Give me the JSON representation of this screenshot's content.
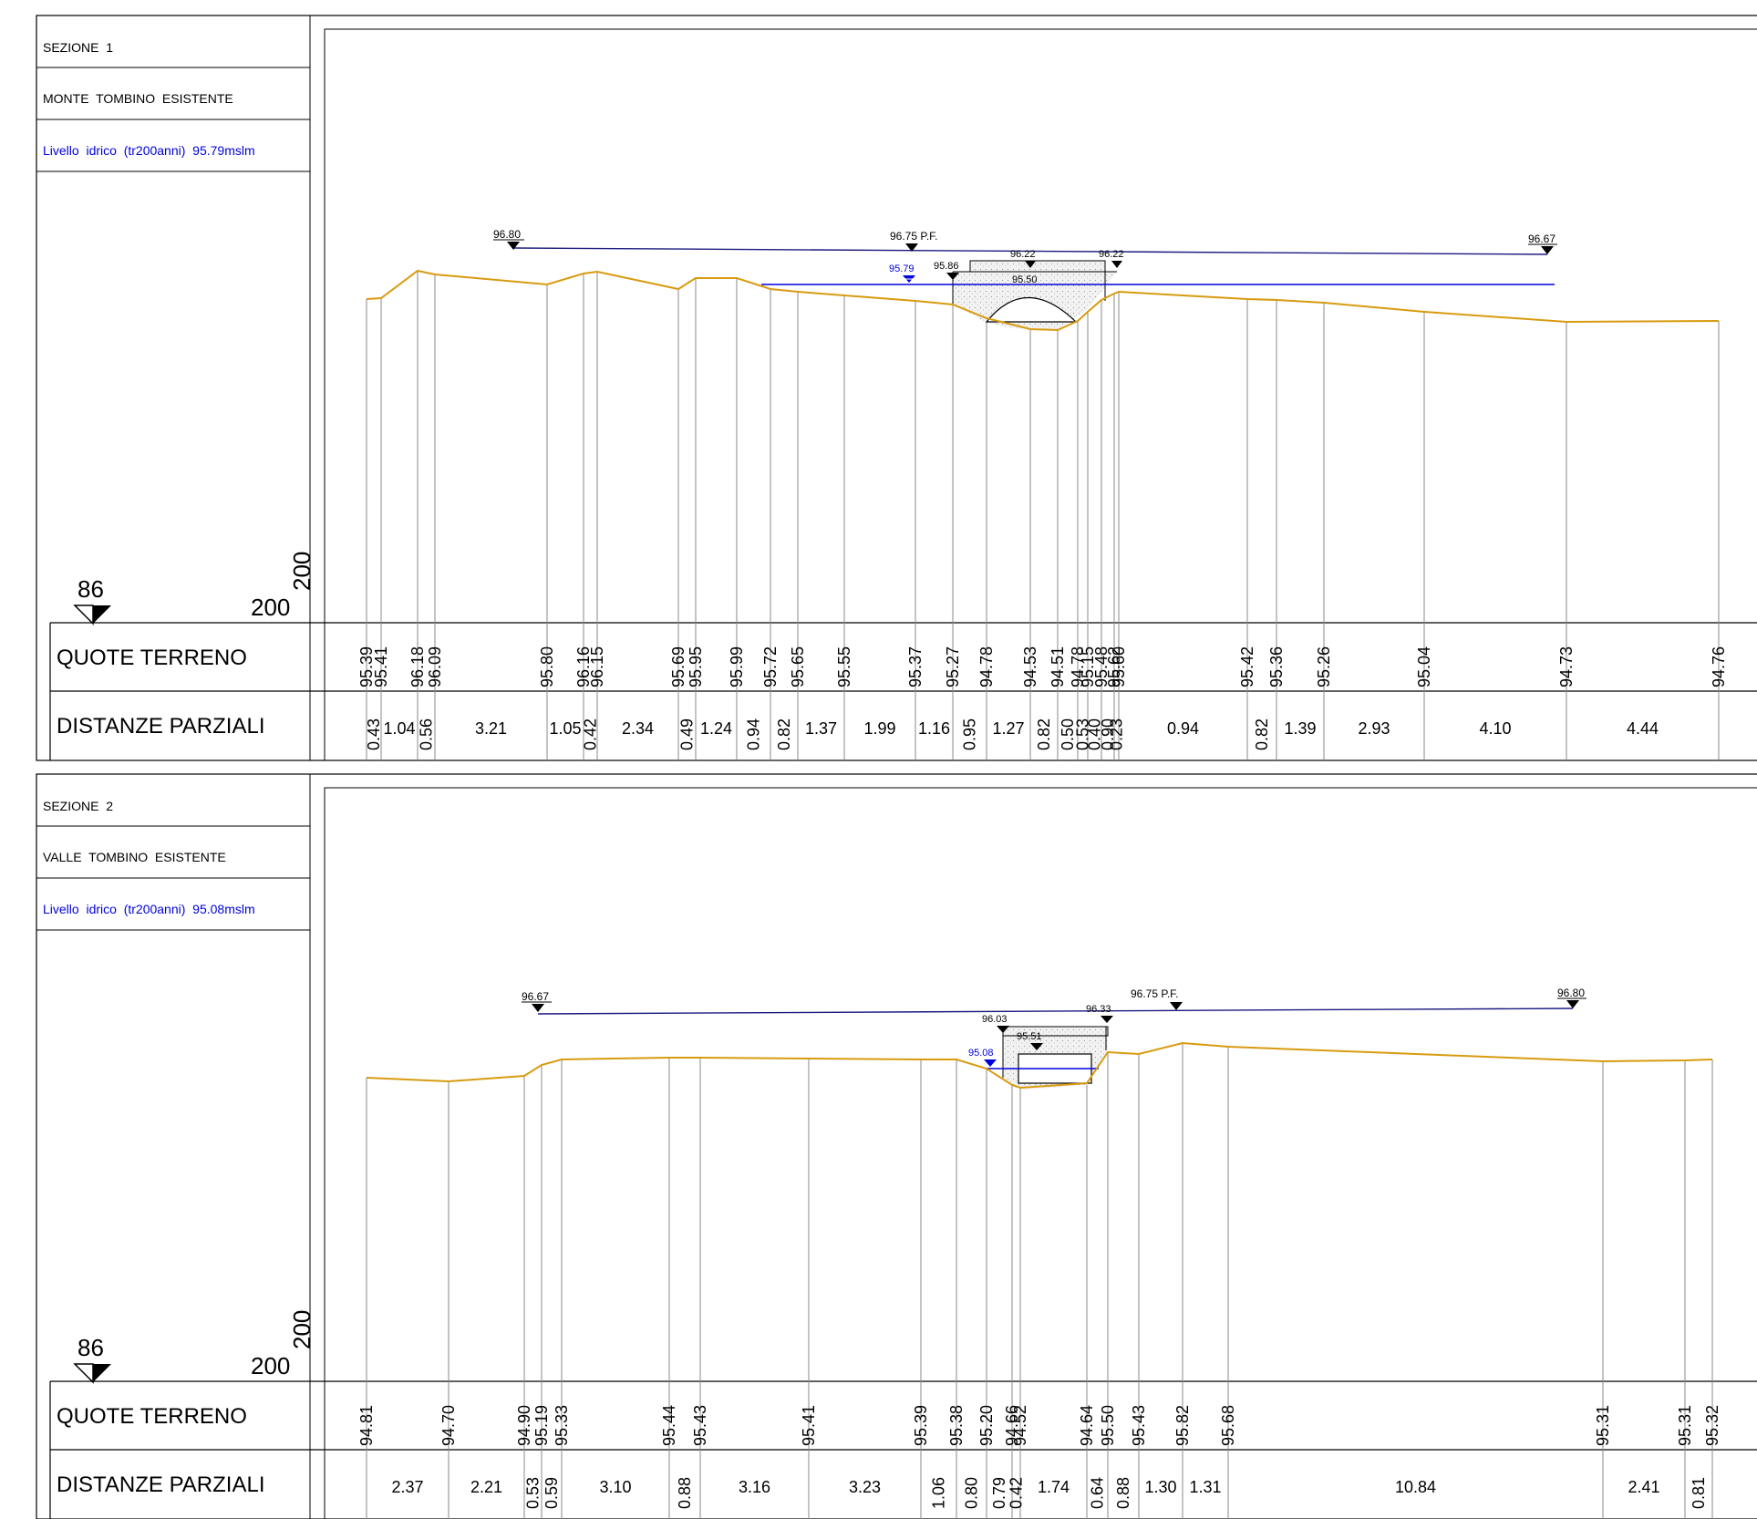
{
  "sections": [
    {
      "id": "sezione-1",
      "label": "SEZIONE  1",
      "subtitle": "MONTE  TOMBINO  ESISTENTE",
      "water_label": "Livello  idrico  (tr200anni)  95.79mslm",
      "datum": "86",
      "scale_h": "200",
      "scale_v": "200",
      "row_quote_label": "QUOTE TERRENO",
      "row_dist_label": "DISTANZE PARZIALI",
      "quote_terreno": [
        "95.39",
        "95.41",
        "96.18",
        "96.09",
        "95.80",
        "96.16",
        "96.15",
        "95.69",
        "95.95",
        "95.99",
        "95.72",
        "95.65",
        "95.55",
        "95.37",
        "95.27",
        "94.78",
        "94.53",
        "94.51",
        "94.78",
        "95.15",
        "95.48",
        "95.62",
        "95.60",
        "95.42",
        "95.36",
        "95.26",
        "95.04",
        "94.73",
        "94.76"
      ],
      "distanze_parziali": [
        "0.43",
        "1.04",
        "0.56",
        "3.21",
        "1.05",
        "0.42",
        "2.34",
        "0.49",
        "1.24",
        "0.94",
        "0.82",
        "1.37",
        "1.99",
        "1.16",
        "0.95",
        "1.27",
        "0.82",
        "0.50",
        "0.53",
        "0.40",
        "0.90",
        "0.23",
        "0.94",
        "0.82",
        "1.39",
        "2.93",
        "4.10",
        "4.44"
      ],
      "annotations": {
        "left_level": "96.80",
        "pf_level": "96.75 P.F.",
        "right_level": "96.67",
        "top_left": "96.22",
        "top_right": "96.22",
        "side_level": "95.86",
        "water_level": "95.79",
        "crown_level": "95.50"
      }
    },
    {
      "id": "sezione-2",
      "label": "SEZIONE  2",
      "subtitle": "VALLE  TOMBINO  ESISTENTE",
      "water_label": "Livello  idrico  (tr200anni)  95.08mslm",
      "datum": "86",
      "scale_h": "200",
      "scale_v": "200",
      "row_quote_label": "QUOTE TERRENO",
      "row_dist_label": "DISTANZE PARZIALI",
      "quote_terreno": [
        "94.81",
        "94.70",
        "94.90",
        "95.19",
        "95.33",
        "95.44",
        "95.43",
        "95.41",
        "95.39",
        "95.38",
        "95.20",
        "94.66",
        "94.52",
        "94.64",
        "95.50",
        "95.43",
        "95.82",
        "95.68",
        "95.31",
        "95.31",
        "95.32"
      ],
      "distanze_parziali": [
        "2.37",
        "2.21",
        "0.53",
        "0.59",
        "3.10",
        "0.88",
        "3.16",
        "3.23",
        "1.06",
        "0.80",
        "0.79",
        "0.42",
        "1.74",
        "0.64",
        "0.88",
        "1.30",
        "1.31",
        "10.84",
        "2.41",
        "0.81"
      ],
      "annotations": {
        "left_level": "96.67",
        "pf_level": "96.75 P.F.",
        "right_level": "96.80",
        "top_left": "96.03",
        "top_right": "96.33",
        "water_level": "95.08",
        "crown_level": "95.51"
      }
    }
  ],
  "colors": {
    "terrain": "#D89B10",
    "water": "#0000DD",
    "pf_line": "#1a1a80",
    "frame": "#000000",
    "grey": "#8a8a8a",
    "hatch": "#bdbdbd"
  }
}
